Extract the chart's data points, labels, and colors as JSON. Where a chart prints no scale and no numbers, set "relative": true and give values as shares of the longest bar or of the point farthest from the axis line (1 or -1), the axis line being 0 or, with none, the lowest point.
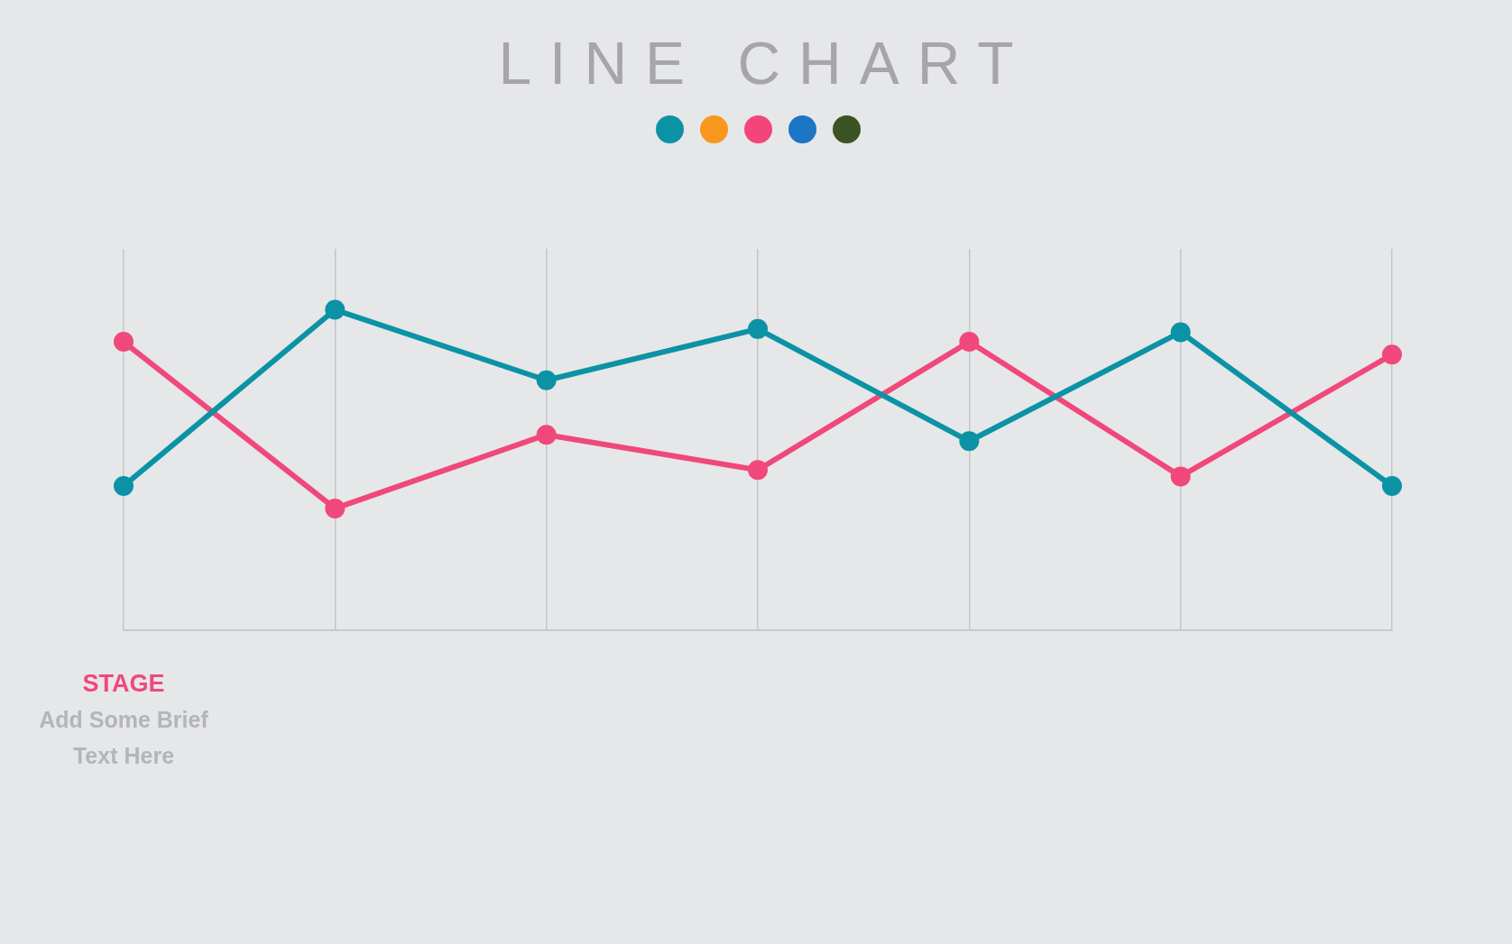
{
  "chart_data": {
    "type": "line",
    "title": "LINE CHART",
    "categories": [
      null,
      null,
      null,
      null,
      null,
      null,
      null
    ],
    "relative": true,
    "grid": "x",
    "marker": "circle",
    "series": [
      {
        "color": "#0b93a5",
        "values": [
          0.45,
          1,
          0.78,
          0.94,
          0.59,
          0.93,
          0.45
        ]
      },
      {
        "color": "#f0487a",
        "values": [
          0.9,
          0.38,
          0.61,
          0.5,
          0.9,
          0.48,
          0.86
        ]
      }
    ],
    "annotations": [
      "STAGE",
      "Add Some Brief Text Here"
    ]
  }
}
